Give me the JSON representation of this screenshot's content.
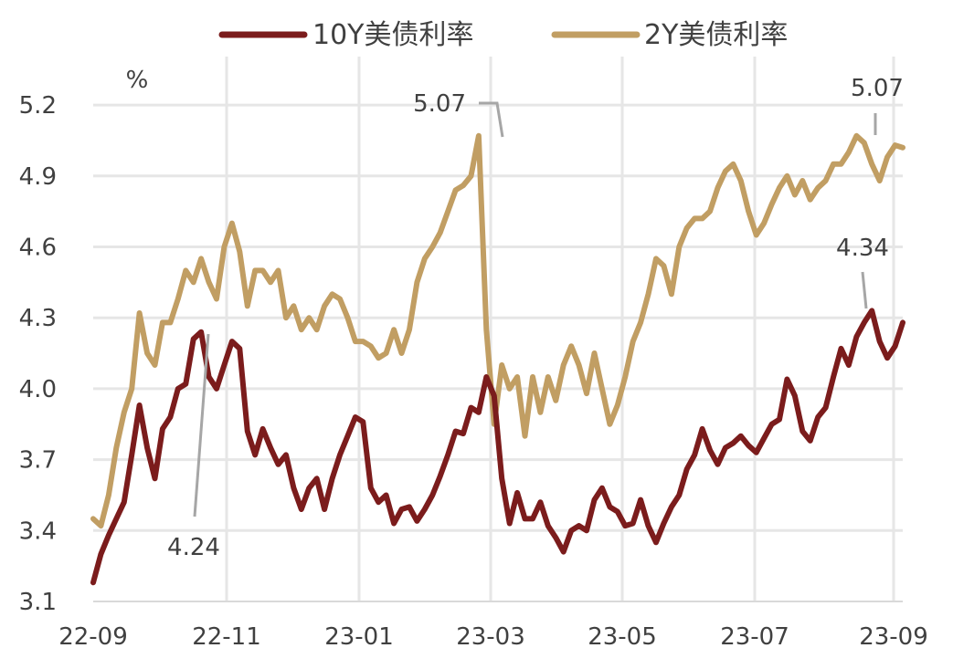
{
  "chart_data": {
    "type": "line",
    "unit_label": "%",
    "ylim": [
      3.1,
      5.3
    ],
    "y_ticks": [
      "3.1",
      "3.4",
      "3.7",
      "4.0",
      "4.3",
      "4.6",
      "4.9",
      "5.2"
    ],
    "x_ticks": [
      "22-09",
      "22-11",
      "23-01",
      "23-03",
      "23-05",
      "23-07",
      "23-09"
    ],
    "grid": true,
    "legend_position": "top",
    "series": [
      {
        "name": "10Y美债利率",
        "color": "#7b1c1c",
        "values": [
          3.18,
          3.3,
          3.38,
          3.45,
          3.52,
          3.72,
          3.93,
          3.75,
          3.62,
          3.83,
          3.88,
          4.0,
          4.02,
          4.21,
          4.24,
          4.05,
          4.0,
          4.1,
          4.2,
          4.17,
          3.82,
          3.72,
          3.83,
          3.75,
          3.68,
          3.72,
          3.58,
          3.49,
          3.58,
          3.62,
          3.49,
          3.62,
          3.72,
          3.8,
          3.88,
          3.86,
          3.58,
          3.52,
          3.55,
          3.43,
          3.49,
          3.5,
          3.44,
          3.49,
          3.55,
          3.63,
          3.72,
          3.82,
          3.81,
          3.92,
          3.9,
          4.05,
          3.97,
          3.62,
          3.43,
          3.56,
          3.45,
          3.45,
          3.52,
          3.42,
          3.37,
          3.31,
          3.4,
          3.42,
          3.4,
          3.53,
          3.58,
          3.5,
          3.48,
          3.42,
          3.43,
          3.53,
          3.42,
          3.35,
          3.43,
          3.5,
          3.55,
          3.66,
          3.72,
          3.83,
          3.74,
          3.68,
          3.75,
          3.77,
          3.8,
          3.76,
          3.73,
          3.79,
          3.85,
          3.87,
          4.04,
          3.97,
          3.82,
          3.78,
          3.88,
          3.92,
          4.05,
          4.17,
          4.1,
          4.22,
          4.28,
          4.33,
          4.2,
          4.13,
          4.18,
          4.28
        ]
      },
      {
        "name": "2Y美债利率",
        "color": "#c19e63",
        "values": [
          3.45,
          3.42,
          3.55,
          3.75,
          3.9,
          4.0,
          4.32,
          4.15,
          4.1,
          4.28,
          4.28,
          4.38,
          4.5,
          4.45,
          4.55,
          4.45,
          4.38,
          4.6,
          4.7,
          4.58,
          4.35,
          4.5,
          4.5,
          4.45,
          4.5,
          4.3,
          4.35,
          4.25,
          4.3,
          4.25,
          4.35,
          4.4,
          4.38,
          4.3,
          4.2,
          4.2,
          4.18,
          4.13,
          4.15,
          4.25,
          4.15,
          4.25,
          4.45,
          4.55,
          4.6,
          4.66,
          4.75,
          4.84,
          4.86,
          4.9,
          5.07,
          4.25,
          3.85,
          4.1,
          4.0,
          4.05,
          3.8,
          4.05,
          3.9,
          4.05,
          3.95,
          4.1,
          4.18,
          4.1,
          3.98,
          4.15,
          4.0,
          3.85,
          3.93,
          4.05,
          4.2,
          4.28,
          4.4,
          4.55,
          4.52,
          4.4,
          4.6,
          4.68,
          4.72,
          4.72,
          4.75,
          4.85,
          4.92,
          4.95,
          4.88,
          4.75,
          4.65,
          4.7,
          4.78,
          4.85,
          4.9,
          4.82,
          4.88,
          4.8,
          4.85,
          4.88,
          4.95,
          4.95,
          5.0,
          5.07,
          5.04,
          4.95,
          4.88,
          4.98,
          5.03,
          5.02
        ]
      }
    ],
    "annotations": [
      {
        "label": "4.24"
      },
      {
        "label": "5.07"
      },
      {
        "label": "5.07"
      },
      {
        "label": "4.34"
      }
    ]
  }
}
